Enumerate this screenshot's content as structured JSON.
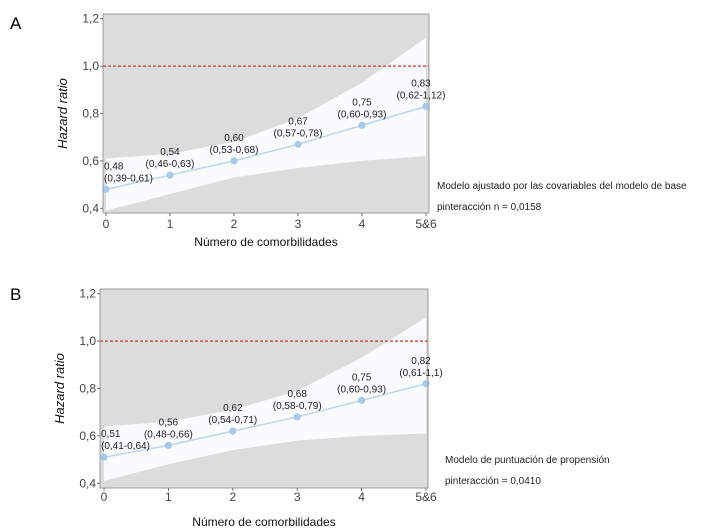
{
  "colors": {
    "plot_background": "#dcdcdc",
    "confidence_band": "#f9fbfd",
    "series_line": "#bcd6ee",
    "series_marker": "#aac9e8",
    "reference_line": "#c0392b",
    "text": "#222222"
  },
  "chart_data": [
    {
      "type": "line",
      "panel_label": "A",
      "xlabel": "Número de comorbilidades",
      "ylabel": "Hazard ratio",
      "categories": [
        "0",
        "1",
        "2",
        "3",
        "4",
        "5&6"
      ],
      "ylim": [
        0.38,
        1.22
      ],
      "yticks": [
        "0,4",
        "0,6",
        "0,8",
        "1,0",
        "1,2"
      ],
      "ytick_values": [
        0.4,
        0.6,
        0.8,
        1.0,
        1.2
      ],
      "reference_line": 1.0,
      "grid": false,
      "series": [
        {
          "values": [
            0.48,
            0.54,
            0.6,
            0.67,
            0.75,
            0.83
          ],
          "lower": [
            0.39,
            0.46,
            0.53,
            0.57,
            0.6,
            0.62
          ],
          "upper": [
            0.61,
            0.63,
            0.68,
            0.78,
            0.93,
            1.12
          ]
        }
      ],
      "data_labels": [
        {
          "value": "0,48",
          "ci": "(0,39-0,61)"
        },
        {
          "value": "0,54",
          "ci": "(0,46-0,63)"
        },
        {
          "value": "0,60",
          "ci": "(0,53-0,68)"
        },
        {
          "value": "0,67",
          "ci": "(0,57-0,78)"
        },
        {
          "value": "0,75",
          "ci": "(0,60-0,93)"
        },
        {
          "value": "0,83",
          "ci": "(0,62-1,12)"
        }
      ],
      "notes": [
        "Modelo ajustado por las covariables del modelo de base",
        "pinteracción n = 0,0158"
      ]
    },
    {
      "type": "line",
      "panel_label": "B",
      "xlabel": "Número de comorbilidades",
      "ylabel": "Hazard ratio",
      "categories": [
        "0",
        "1",
        "2",
        "3",
        "4",
        "5&6"
      ],
      "ylim": [
        0.38,
        1.22
      ],
      "yticks": [
        "0,4",
        "0,6",
        "0,8",
        "1,0",
        "1,2"
      ],
      "ytick_values": [
        0.4,
        0.6,
        0.8,
        1.0,
        1.2
      ],
      "reference_line": 1.0,
      "grid": false,
      "series": [
        {
          "values": [
            0.51,
            0.56,
            0.62,
            0.68,
            0.75,
            0.82
          ],
          "lower": [
            0.41,
            0.48,
            0.54,
            0.58,
            0.6,
            0.61
          ],
          "upper": [
            0.64,
            0.66,
            0.71,
            0.79,
            0.93,
            1.1
          ]
        }
      ],
      "data_labels": [
        {
          "value": "0,51",
          "ci": "(0,41-0,64)"
        },
        {
          "value": "0,56",
          "ci": "(0,48-0,66)"
        },
        {
          "value": "0,62",
          "ci": "(0,54-0,71)"
        },
        {
          "value": "0,68",
          "ci": "(0,58-0,79)"
        },
        {
          "value": "0,75",
          "ci": "(0,60-0,93)"
        },
        {
          "value": "0,82",
          "ci": "(0,61-1,1)"
        }
      ],
      "notes": [
        "Modelo de puntuación de propensión",
        "pinteracción = 0,0410"
      ]
    }
  ]
}
